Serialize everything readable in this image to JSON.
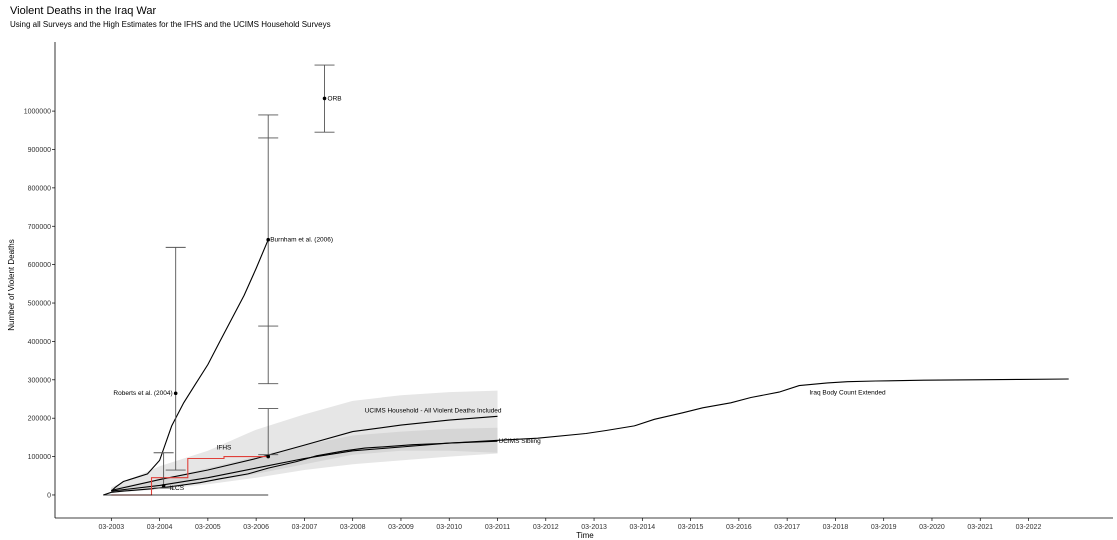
{
  "chart_data": {
    "type": "line",
    "title": "Violent Deaths in the Iraq War",
    "subtitle": "Using all Surveys and the High Estimates for the IFHS and the UCIMS Household Surveys",
    "xlabel": "Time",
    "ylabel": "Number of Violent Deaths",
    "xlim": [
      "2002-01",
      "2023-12"
    ],
    "ylim": [
      -60000,
      1180000
    ],
    "grid": false,
    "x_ticks": [
      "03-2003",
      "03-2004",
      "03-2005",
      "03-2006",
      "03-2007",
      "03-2008",
      "03-2009",
      "03-2010",
      "03-2011",
      "03-2012",
      "03-2013",
      "03-2014",
      "03-2015",
      "03-2016",
      "03-2017",
      "03-2018",
      "03-2019",
      "03-2020",
      "03-2021",
      "03-2022"
    ],
    "y_ticks": [
      0,
      100000,
      200000,
      300000,
      400000,
      500000,
      600000,
      700000,
      800000,
      900000,
      1000000
    ],
    "series": [
      {
        "name": "Iraq Body Count Extended",
        "color": "#000000",
        "x": [
          "2003-01",
          "2003-03",
          "2003-06",
          "2004-01",
          "2004-06",
          "2005-01",
          "2005-06",
          "2006-01",
          "2006-06",
          "2007-01",
          "2007-06",
          "2008-01",
          "2008-06",
          "2009-01",
          "2009-06",
          "2010-01",
          "2010-06",
          "2011-01",
          "2011-06",
          "2012-01",
          "2013-01",
          "2013-06",
          "2014-01",
          "2014-06",
          "2015-01",
          "2015-06",
          "2016-01",
          "2016-06",
          "2017-01",
          "2017-06",
          "2018-01",
          "2018-06",
          "2019-01",
          "2020-01",
          "2021-01",
          "2022-01",
          "2023-01"
        ],
        "values": [
          0,
          7000,
          10000,
          16000,
          22000,
          32000,
          42000,
          55000,
          70000,
          87000,
          102000,
          115000,
          122000,
          127000,
          131000,
          134000,
          137000,
          141000,
          144000,
          148000,
          160000,
          168000,
          180000,
          197000,
          214000,
          227000,
          240000,
          254000,
          268000,
          285000,
          292000,
          295000,
          297000,
          299000,
          300000,
          301000,
          302000
        ]
      },
      {
        "name": "Burnham et al. (2006)",
        "color": "#000000",
        "x": [
          "2003-03",
          "2003-04",
          "2003-06",
          "2003-09",
          "2003-12",
          "2004-03",
          "2004-06",
          "2004-09",
          "2004-12",
          "2005-03",
          "2005-06",
          "2005-09",
          "2005-12",
          "2006-03",
          "2006-06"
        ],
        "values": [
          10000,
          20000,
          35000,
          45000,
          55000,
          90000,
          180000,
          240000,
          290000,
          340000,
          400000,
          460000,
          520000,
          590000,
          665000
        ]
      },
      {
        "name": "UCIMS Household - All Violent Deaths Included",
        "color": "#000000",
        "x": [
          "2003-03",
          "2004-03",
          "2005-03",
          "2006-03",
          "2007-03",
          "2008-03",
          "2009-03",
          "2010-03",
          "2011-03"
        ],
        "values": [
          12000,
          40000,
          65000,
          95000,
          130000,
          165000,
          182000,
          195000,
          205000
        ],
        "band_low": [
          5000,
          20000,
          35000,
          55000,
          80000,
          105000,
          115000,
          115000,
          110000
        ],
        "band_high": [
          20000,
          75000,
          115000,
          170000,
          210000,
          245000,
          260000,
          268000,
          272000
        ]
      },
      {
        "name": "UCIMS Sibling",
        "color": "#000000",
        "x": [
          "2003-03",
          "2004-03",
          "2005-03",
          "2006-03",
          "2007-03",
          "2008-03",
          "2009-03",
          "2010-03",
          "2011-03"
        ],
        "values": [
          10000,
          25000,
          45000,
          70000,
          95000,
          115000,
          125000,
          135000,
          140000
        ],
        "band_low": [
          5000,
          15000,
          28000,
          45000,
          65000,
          80000,
          90000,
          100000,
          108000
        ],
        "band_high": [
          18000,
          40000,
          70000,
          100000,
          130000,
          155000,
          165000,
          172000,
          175000
        ]
      },
      {
        "name": "IFHS",
        "color": "#e0403a",
        "x": [
          "2003-03",
          "2004-01",
          "2004-01",
          "2004-10",
          "2004-10",
          "2005-07",
          "2005-07",
          "2006-06"
        ],
        "values": [
          0,
          0,
          45000,
          45000,
          95000,
          95000,
          100000,
          100000
        ]
      }
    ],
    "surveys": [
      {
        "name": "Roberts et al. (2004)",
        "x": "2004-07",
        "value": 265000,
        "low": 65000,
        "high": 645000
      },
      {
        "name": "Burnham et al. (2006)",
        "x": "2006-06",
        "value": 665000,
        "low": 290000,
        "high": 990000,
        "inner_low": 440000,
        "inner_high": 930000
      },
      {
        "name": "ORB",
        "x": "2007-08",
        "value": 1033000,
        "low": 945000,
        "high": 1120000
      },
      {
        "name": "IFHS",
        "x": "2006-06",
        "value": 100000,
        "low": 105000,
        "high": 225000
      },
      {
        "name": "ILCS",
        "x": "2004-04",
        "value": 24000,
        "low": 18000,
        "high": 110000
      }
    ],
    "annotations": [
      {
        "text": "ORB",
        "x": "2007-08",
        "y": 1033000
      },
      {
        "text": "Burnham et al. (2006)",
        "x": "2006-06",
        "y": 665000
      },
      {
        "text": "Roberts et al. (2004)",
        "x": "2004-07",
        "y": 265000
      },
      {
        "text": "UCIMS Household - All Violent Deaths Included",
        "x": "2011-03",
        "y": 210000
      },
      {
        "text": "UCIMS Sibling",
        "x": "2011-03",
        "y": 140000
      },
      {
        "text": "Iraq Body Count Extended",
        "x": "2018-06",
        "y": 283000
      },
      {
        "text": "IFHS",
        "x": "2005-07",
        "y": 110000
      },
      {
        "text": "ILCS",
        "x": "2004-04",
        "y": 24000
      }
    ]
  }
}
